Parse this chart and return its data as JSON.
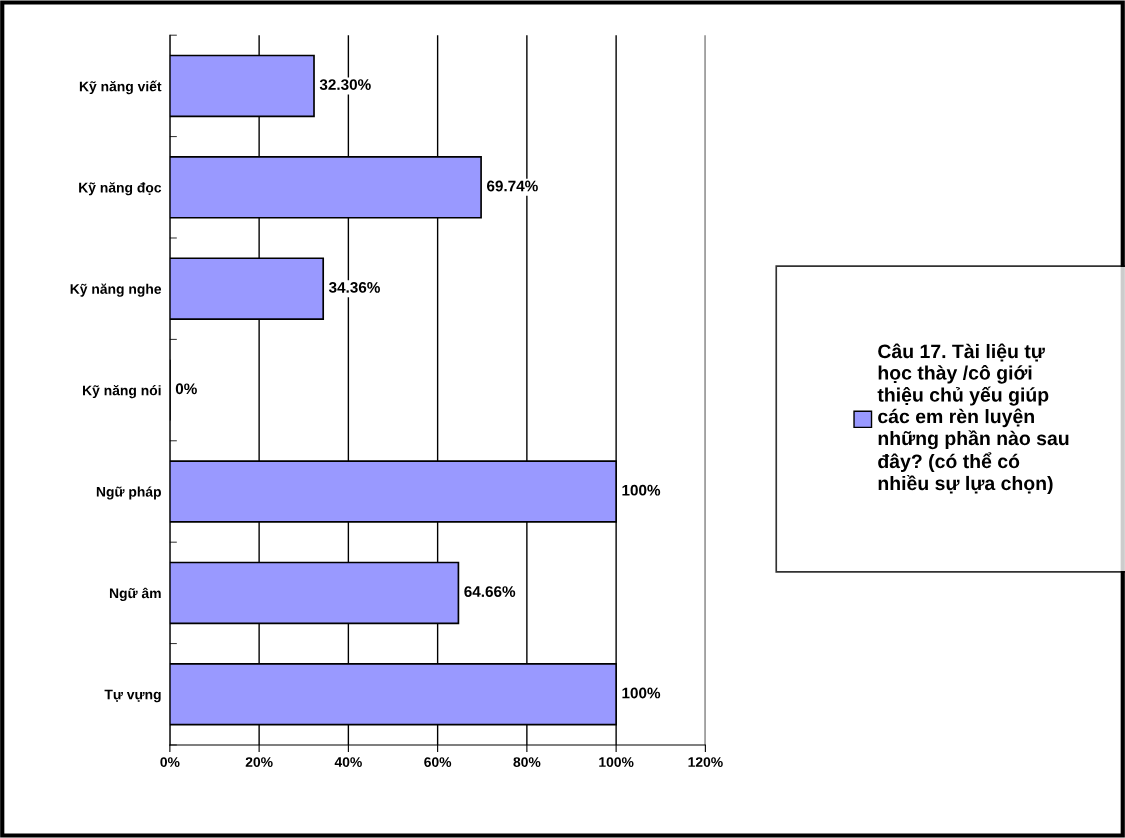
{
  "chart_data": {
    "type": "bar",
    "orientation": "horizontal",
    "categories": [
      "Kỹ năng viết",
      "Kỹ năng đọc",
      "Kỹ năng nghe",
      "Kỹ năng nói",
      "Ngữ pháp",
      "Ngữ âm",
      "Tự vựng"
    ],
    "series": [
      {
        "name": "Câu 17. Tài liệu tự học thày /cô giới thiệu chủ yếu giúp các em rèn luyện những phần nào sau đây? (có thể có nhiều sự lựa chọn)",
        "color": "#9999ff",
        "values": [
          32.3,
          69.74,
          34.36,
          0,
          100,
          64.66,
          100
        ],
        "value_labels": [
          "32.30%",
          "69.74%",
          "34.36%",
          "0%",
          "100%",
          "64.66%",
          "100%"
        ]
      }
    ],
    "xlim": [
      0,
      120
    ],
    "xticks": [
      {
        "value": 0,
        "label": "0%"
      },
      {
        "value": 20,
        "label": "20%"
      },
      {
        "value": 40,
        "label": "40%"
      },
      {
        "value": 60,
        "label": "60%"
      },
      {
        "value": 80,
        "label": "80%"
      },
      {
        "value": 100,
        "label": "100%"
      },
      {
        "value": 120,
        "label": "120%"
      }
    ],
    "grid": "x",
    "legend": "right"
  }
}
